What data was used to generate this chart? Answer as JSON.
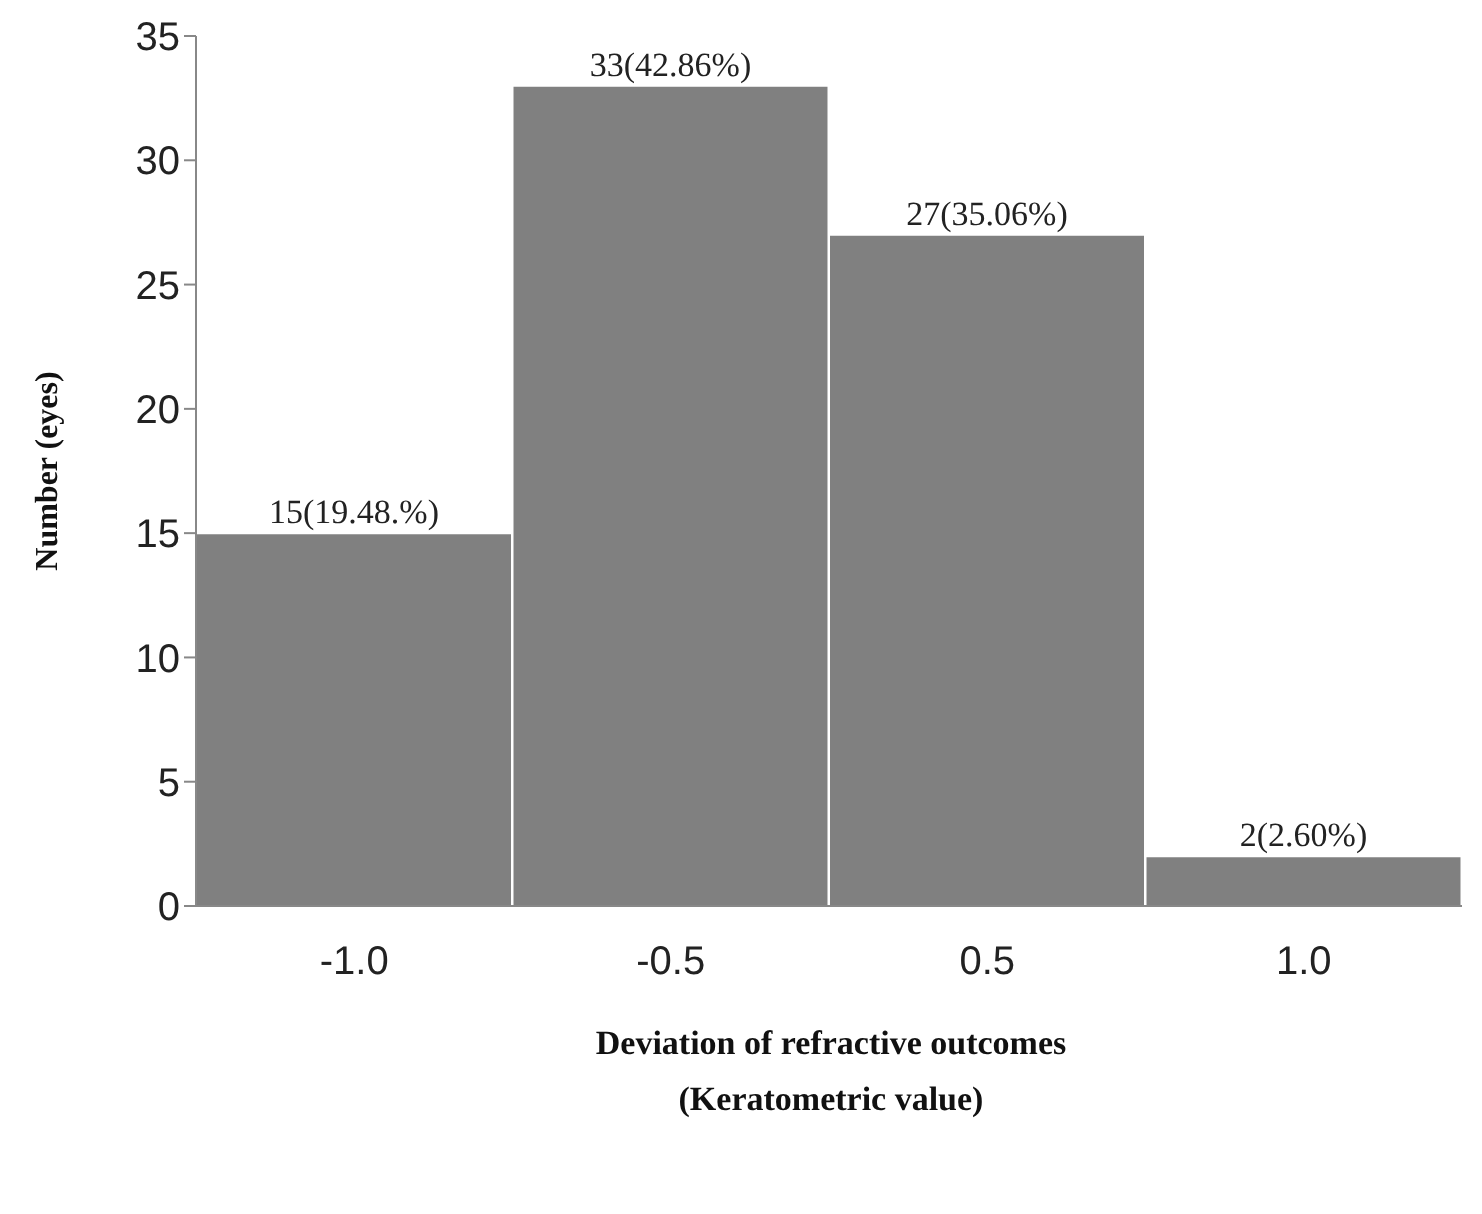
{
  "chart_data": {
    "type": "bar",
    "xlabel": "Deviation of refractive outcomes\n(Keratometric value)",
    "ylabel": "Number (eyes)",
    "categories": [
      "-1.0",
      "-0.5",
      "0.5",
      "1.0"
    ],
    "values": [
      15,
      33,
      27,
      2
    ],
    "value_labels": [
      "15(19.48.%)",
      "33(42.86%)",
      "27(35.06%)",
      "2(2.60%)"
    ],
    "color": "#808080",
    "ylim": [
      0,
      35
    ],
    "yticks": [
      0,
      5,
      10,
      15,
      20,
      25,
      30,
      35
    ],
    "grid": false,
    "legend": false
  }
}
